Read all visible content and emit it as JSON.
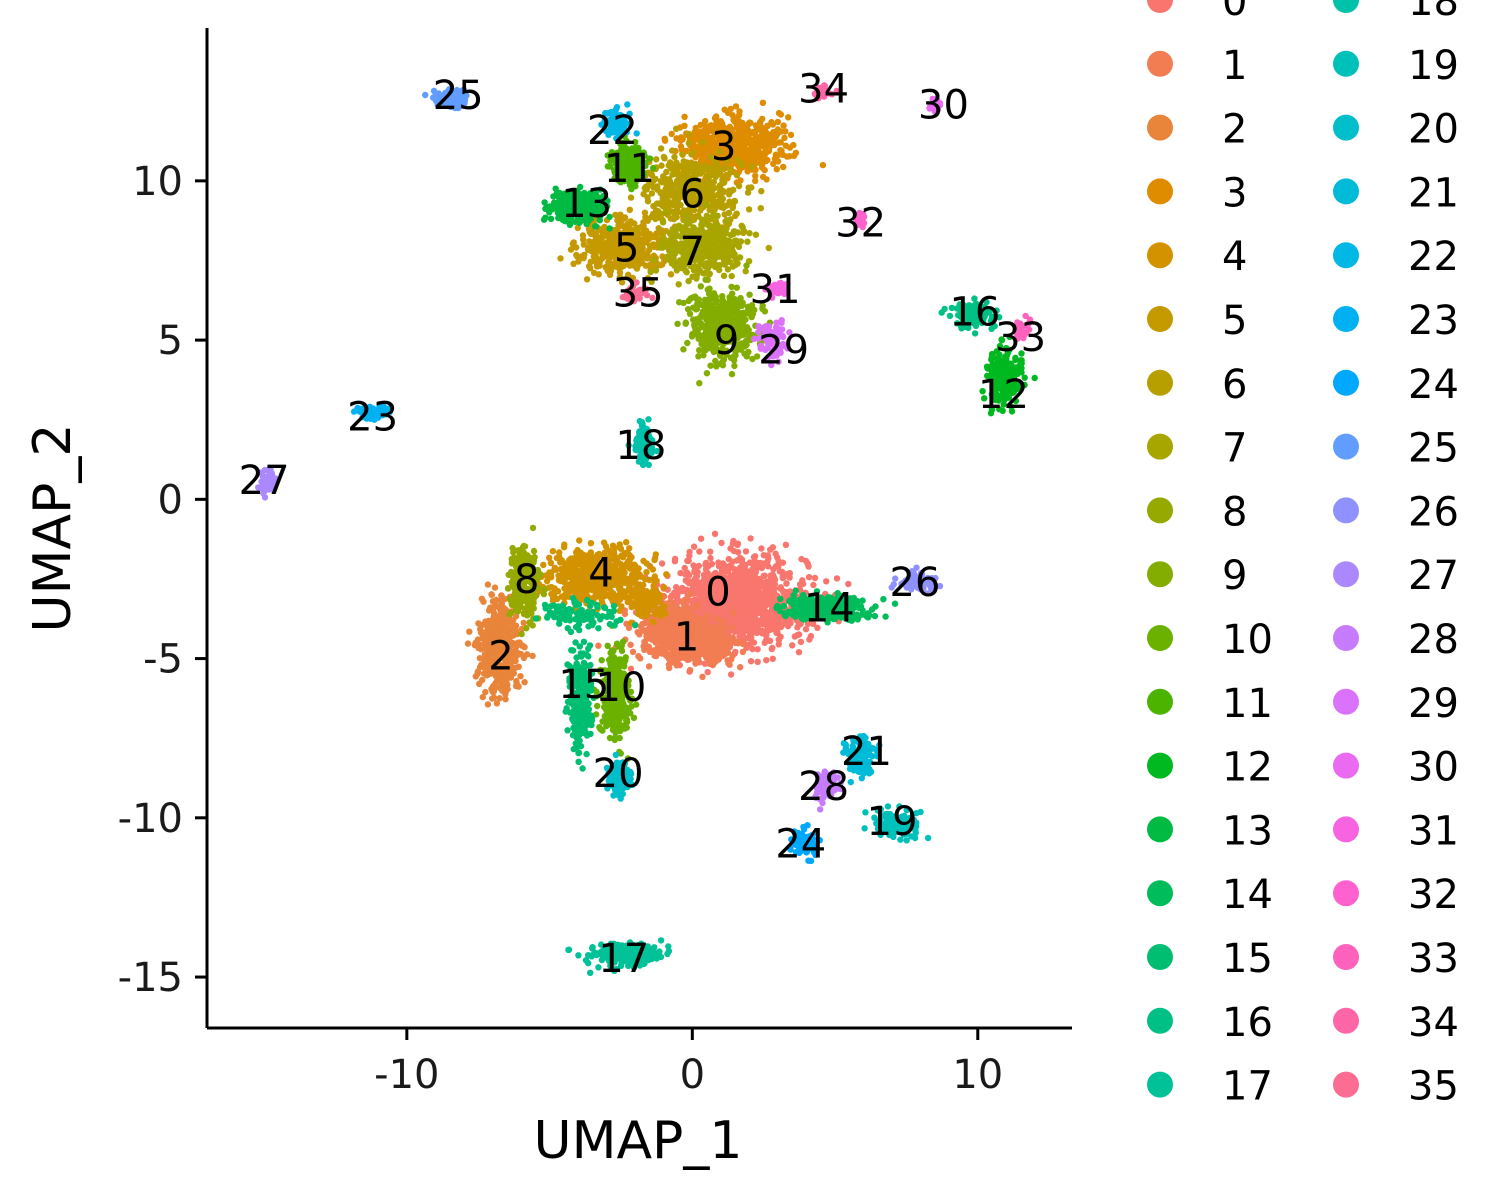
{
  "chart_data": {
    "type": "scatter",
    "title": "",
    "xlabel": "UMAP_1",
    "ylabel": "UMAP_2",
    "xlim": [
      -17,
      13.3
    ],
    "ylim": [
      -16.6,
      14.8
    ],
    "xticks": [
      -10,
      0,
      10
    ],
    "yticks": [
      -15,
      -10,
      -5,
      0,
      5,
      10
    ],
    "grid": false,
    "legend_position": "right",
    "colors": [
      "#F8766D",
      "#F27D52",
      "#E8853A",
      "#DE8C00",
      "#D39200",
      "#C59900",
      "#B79F00",
      "#A7A500",
      "#96A900",
      "#83AD00",
      "#6BB100",
      "#4CB400",
      "#00B81F",
      "#00BA42",
      "#00BC5B",
      "#00BE71",
      "#00C085",
      "#00C198",
      "#00C1AA",
      "#00C0BA",
      "#00BECA",
      "#00BBD8",
      "#00B7E6",
      "#00B1F2",
      "#00A9FF",
      "#619CFF",
      "#8F91FF",
      "#AC88FF",
      "#C77CFF",
      "#DB72FB",
      "#EA6AF1",
      "#F763E0",
      "#FF61CF",
      "#FF62BC",
      "#FF66A8",
      "#FC6C93"
    ],
    "series": [
      {
        "name": "0",
        "label_at": [
          0.9,
          -2.9
        ],
        "blobs": [
          [
            1.6,
            -3.2,
            2.4,
            1.4,
            1200
          ],
          [
            0.2,
            -4.2,
            1.2,
            0.8,
            300
          ]
        ]
      },
      {
        "name": "1",
        "label_at": [
          -0.2,
          -4.3
        ],
        "blobs": [
          [
            -0.6,
            -4.2,
            1.3,
            0.9,
            500
          ],
          [
            0.6,
            -4.6,
            1.0,
            0.6,
            200
          ]
        ]
      },
      {
        "name": "2",
        "label_at": [
          -6.7,
          -4.9
        ],
        "blobs": [
          [
            -6.7,
            -4.6,
            0.7,
            1.5,
            420
          ]
        ]
      },
      {
        "name": "3",
        "label_at": [
          1.1,
          11.1
        ],
        "blobs": [
          [
            1.4,
            11.1,
            1.7,
            0.9,
            600
          ]
        ]
      },
      {
        "name": "4",
        "label_at": [
          -3.2,
          -2.3
        ],
        "blobs": [
          [
            -3.3,
            -2.4,
            1.8,
            0.8,
            550
          ],
          [
            -1.6,
            -3.2,
            0.7,
            0.5,
            100
          ]
        ]
      },
      {
        "name": "5",
        "label_at": [
          -2.3,
          7.9
        ],
        "blobs": [
          [
            -2.5,
            7.9,
            1.5,
            0.8,
            450
          ]
        ]
      },
      {
        "name": "6",
        "label_at": [
          0.0,
          9.6
        ],
        "blobs": [
          [
            0.0,
            9.6,
            1.7,
            1.3,
            450
          ]
        ]
      },
      {
        "name": "7",
        "label_at": [
          0.0,
          7.8
        ],
        "blobs": [
          [
            0.4,
            7.9,
            1.4,
            0.9,
            350
          ]
        ]
      },
      {
        "name": "8",
        "label_at": [
          -5.8,
          -2.5
        ],
        "blobs": [
          [
            -5.9,
            -2.6,
            0.5,
            1.1,
            250
          ]
        ]
      },
      {
        "name": "9",
        "label_at": [
          1.2,
          5.0
        ],
        "blobs": [
          [
            1.0,
            5.4,
            1.2,
            1.1,
            420
          ]
        ]
      },
      {
        "name": "10",
        "label_at": [
          -2.5,
          -5.9
        ],
        "blobs": [
          [
            -2.7,
            -6.2,
            0.5,
            1.4,
            300
          ]
        ]
      },
      {
        "name": "11",
        "label_at": [
          -2.2,
          10.4
        ],
        "blobs": [
          [
            -2.2,
            10.5,
            0.6,
            0.6,
            180
          ]
        ]
      },
      {
        "name": "12",
        "label_at": [
          10.9,
          3.3
        ],
        "blobs": [
          [
            10.9,
            3.8,
            0.6,
            0.8,
            250
          ]
        ]
      },
      {
        "name": "13",
        "label_at": [
          -3.7,
          9.3
        ],
        "blobs": [
          [
            -4.0,
            9.2,
            1.0,
            0.5,
            250
          ]
        ]
      },
      {
        "name": "14",
        "label_at": [
          4.8,
          -3.4
        ],
        "blobs": [
          [
            4.6,
            -3.4,
            1.6,
            0.35,
            300
          ]
        ]
      },
      {
        "name": "15",
        "label_at": [
          -3.8,
          -5.8
        ],
        "blobs": [
          [
            -3.9,
            -6.3,
            0.4,
            1.5,
            250
          ],
          [
            -4.0,
            -3.6,
            1.2,
            0.4,
            100
          ]
        ]
      },
      {
        "name": "16",
        "label_at": [
          9.9,
          5.9
        ],
        "blobs": [
          [
            9.8,
            5.8,
            0.7,
            0.4,
            150
          ]
        ]
      },
      {
        "name": "17",
        "label_at": [
          -2.4,
          -14.4
        ],
        "blobs": [
          [
            -2.4,
            -14.3,
            1.3,
            0.35,
            250
          ]
        ]
      },
      {
        "name": "18",
        "label_at": [
          -1.8,
          1.7
        ],
        "blobs": [
          [
            -1.7,
            1.8,
            0.3,
            0.6,
            100
          ]
        ]
      },
      {
        "name": "19",
        "label_at": [
          7.0,
          -10.1
        ],
        "blobs": [
          [
            7.1,
            -10.2,
            0.8,
            0.4,
            120
          ]
        ]
      },
      {
        "name": "20",
        "label_at": [
          -2.6,
          -8.6
        ],
        "blobs": [
          [
            -2.6,
            -8.7,
            0.4,
            0.5,
            150
          ]
        ]
      },
      {
        "name": "21",
        "label_at": [
          6.1,
          -7.9
        ],
        "blobs": [
          [
            5.9,
            -8.0,
            0.5,
            0.6,
            150
          ]
        ]
      },
      {
        "name": "22",
        "label_at": [
          -2.8,
          11.6
        ],
        "blobs": [
          [
            -2.7,
            11.8,
            0.4,
            0.4,
            120
          ]
        ]
      },
      {
        "name": "23",
        "label_at": [
          -11.2,
          2.6
        ],
        "blobs": [
          [
            -11.2,
            2.7,
            0.6,
            0.2,
            80
          ]
        ]
      },
      {
        "name": "24",
        "label_at": [
          3.8,
          -10.8
        ],
        "blobs": [
          [
            3.9,
            -10.8,
            0.4,
            0.4,
            90
          ]
        ]
      },
      {
        "name": "25",
        "label_at": [
          -8.2,
          12.7
        ],
        "blobs": [
          [
            -8.5,
            12.6,
            0.6,
            0.3,
            100
          ]
        ]
      },
      {
        "name": "26",
        "label_at": [
          7.8,
          -2.6
        ],
        "blobs": [
          [
            7.8,
            -2.6,
            0.6,
            0.3,
            80
          ]
        ]
      },
      {
        "name": "27",
        "label_at": [
          -15.0,
          0.6
        ],
        "blobs": [
          [
            -14.9,
            0.6,
            0.25,
            0.4,
            50
          ]
        ]
      },
      {
        "name": "28",
        "label_at": [
          4.6,
          -9.0
        ],
        "blobs": [
          [
            4.7,
            -9.0,
            0.4,
            0.5,
            90
          ]
        ]
      },
      {
        "name": "29",
        "label_at": [
          3.2,
          4.7
        ],
        "blobs": [
          [
            2.8,
            5.0,
            0.5,
            0.6,
            80
          ]
        ]
      },
      {
        "name": "30",
        "label_at": [
          8.8,
          12.4
        ],
        "blobs": [
          [
            8.5,
            12.4,
            0.2,
            0.2,
            30
          ]
        ]
      },
      {
        "name": "31",
        "label_at": [
          2.9,
          6.6
        ],
        "blobs": [
          [
            3.0,
            6.6,
            0.4,
            0.2,
            40
          ]
        ]
      },
      {
        "name": "32",
        "label_at": [
          5.9,
          8.7
        ],
        "blobs": [
          [
            5.9,
            8.8,
            0.2,
            0.3,
            30
          ]
        ]
      },
      {
        "name": "33",
        "label_at": [
          11.5,
          5.1
        ],
        "blobs": [
          [
            11.5,
            5.3,
            0.25,
            0.3,
            30
          ]
        ]
      },
      {
        "name": "34",
        "label_at": [
          4.6,
          12.9
        ],
        "blobs": [
          [
            4.5,
            12.8,
            0.3,
            0.2,
            30
          ]
        ]
      },
      {
        "name": "35",
        "label_at": [
          -1.9,
          6.5
        ],
        "blobs": [
          [
            -2.0,
            6.5,
            0.4,
            0.3,
            40
          ]
        ]
      }
    ]
  }
}
